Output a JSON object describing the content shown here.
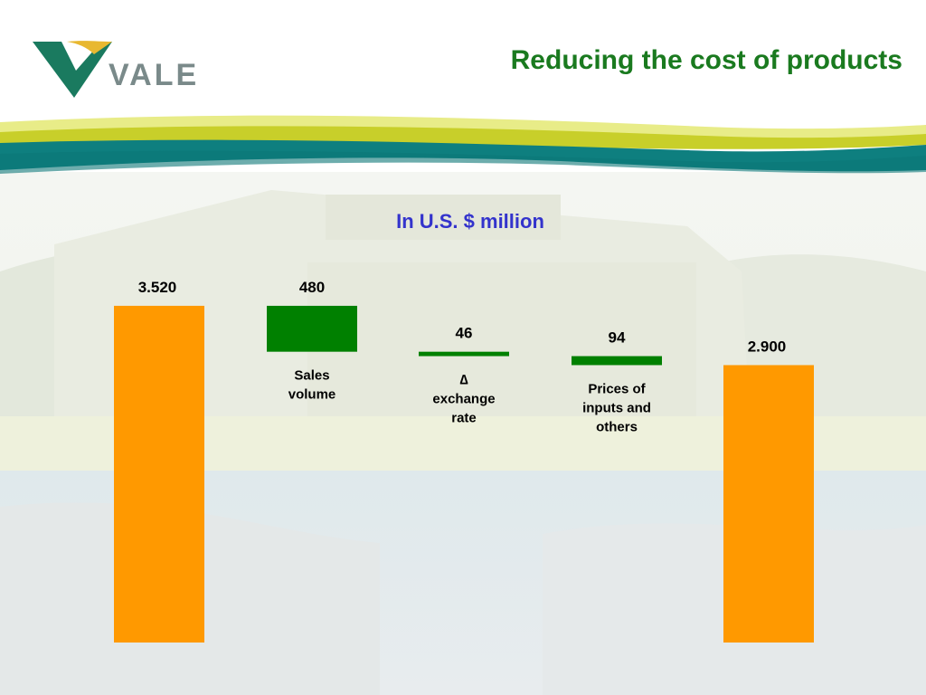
{
  "logo": {
    "text": "VALE"
  },
  "slide": {
    "title": "Reducing the cost of products"
  },
  "chart_data": {
    "type": "bar",
    "subtitle": "In U.S. $ million",
    "waterfall": true,
    "bars": [
      {
        "category": "",
        "value": 3520,
        "value_label": "3.520",
        "kind": "total",
        "color": "#ff9900"
      },
      {
        "category": "Sales volume",
        "value": -480,
        "value_label": "480",
        "kind": "change",
        "color": "#008000"
      },
      {
        "category": "∆ exchange rate",
        "value": -46,
        "value_label": "46",
        "kind": "change",
        "color": "#008000"
      },
      {
        "category": "Prices of inputs and others",
        "value": -94,
        "value_label": "94",
        "kind": "change",
        "color": "#008000"
      },
      {
        "category": "",
        "value": 2900,
        "value_label": "2.900",
        "kind": "total",
        "color": "#ff9900"
      }
    ],
    "category_lines": [
      [],
      [
        "Sales",
        "volume"
      ],
      [
        "∆",
        "exchange",
        "rate"
      ],
      [
        "Prices of",
        "inputs and",
        "others"
      ],
      []
    ]
  },
  "colors": {
    "title": "#1a7a1f",
    "subtitle": "#3333cc",
    "band_yellow": "#c8cf2a",
    "band_teal": "#0e7f7f",
    "logo_green": "#1a7a5f",
    "logo_yellow": "#e8b830"
  }
}
